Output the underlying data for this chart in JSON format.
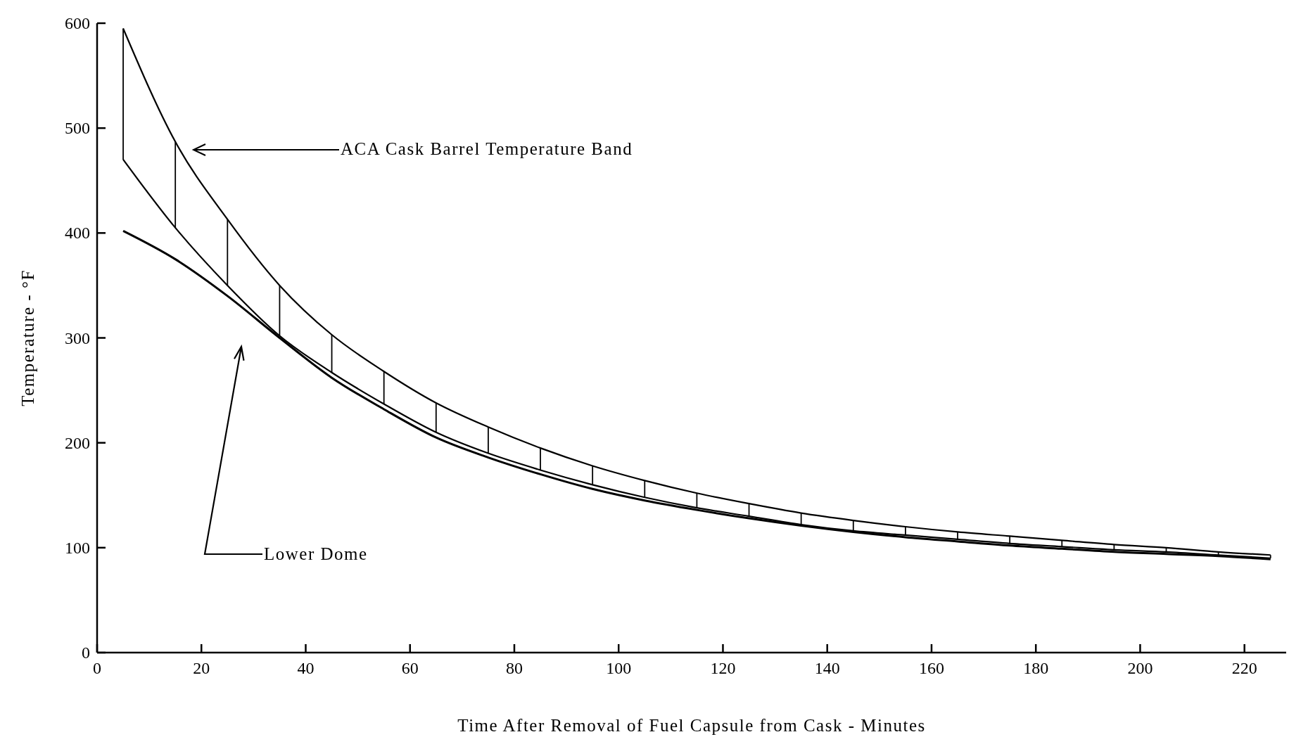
{
  "chart_data": {
    "type": "line",
    "xlabel": "Time After Removal of Fuel Capsule from Cask - Minutes",
    "ylabel": "Temperature - °F",
    "xlim": [
      0,
      228
    ],
    "ylim": [
      0,
      600
    ],
    "xticks": [
      0,
      20,
      40,
      60,
      80,
      100,
      120,
      140,
      160,
      180,
      200,
      220
    ],
    "yticks": [
      0,
      100,
      200,
      300,
      400,
      500,
      600
    ],
    "grid": false,
    "x": [
      5,
      15,
      25,
      35,
      45,
      55,
      65,
      75,
      85,
      95,
      105,
      115,
      125,
      135,
      145,
      155,
      165,
      175,
      185,
      195,
      205,
      215,
      225
    ],
    "series": [
      {
        "color": "#000000",
        "values": [
          595,
          487,
          413,
          350,
          303,
          268,
          238,
          215,
          195,
          178,
          164,
          152,
          142,
          133,
          126,
          120,
          115,
          111,
          107,
          103,
          100,
          96,
          93
        ],
        "errors": [
          [
            470,
            595
          ],
          [
            405,
            487
          ],
          [
            350,
            413
          ],
          [
            302,
            350
          ],
          [
            267,
            303
          ],
          [
            237,
            268
          ],
          [
            210,
            238
          ],
          [
            190,
            215
          ],
          [
            174,
            195
          ],
          [
            160,
            178
          ],
          [
            148,
            164
          ],
          [
            138,
            152
          ],
          [
            130,
            142
          ],
          [
            122,
            133
          ],
          [
            116,
            126
          ],
          [
            112,
            120
          ],
          [
            108,
            115
          ],
          [
            104,
            111
          ],
          [
            101,
            107
          ],
          [
            98,
            103
          ],
          [
            96,
            100
          ],
          [
            93,
            96
          ],
          [
            90,
            93
          ]
        ]
      },
      {
        "color": "#000000",
        "values": [
          470,
          405,
          350,
          302,
          267,
          237,
          210,
          190,
          174,
          160,
          148,
          138,
          130,
          122,
          116,
          112,
          108,
          104,
          101,
          98,
          96,
          93,
          90
        ]
      },
      {
        "color": "#000000",
        "values": [
          402,
          375,
          340,
          300,
          262,
          232,
          205,
          186,
          170,
          156,
          145,
          136,
          128,
          121,
          115,
          110,
          106,
          102,
          99,
          96,
          94,
          92,
          89
        ]
      }
    ],
    "annotations": [
      "ACA Cask Barrel Temperature Band",
      "Lower Dome"
    ]
  }
}
